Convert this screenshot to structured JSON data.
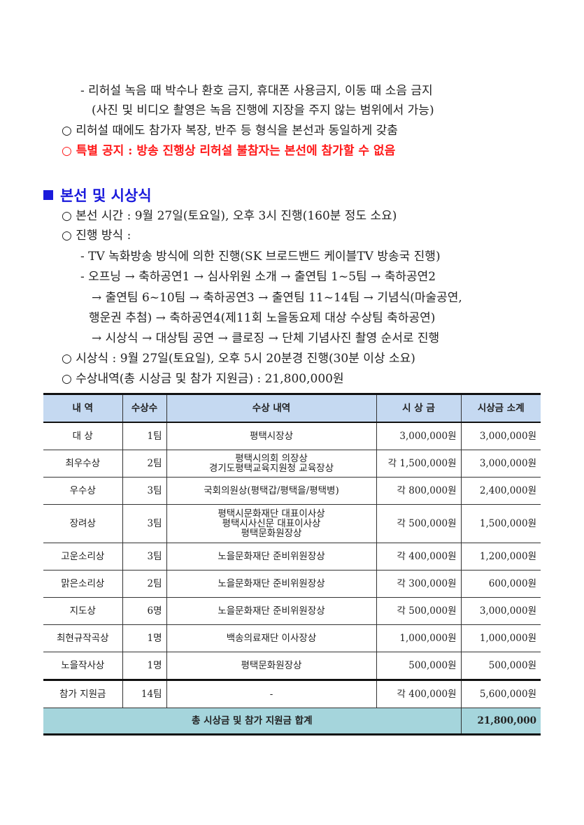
{
  "rehearsal": {
    "lines": [
      "- 리허설 녹음 때 박수나 환호 금지, 휴대폰 사용금지, 이동 때 소음 금지",
      "(사진 및 비디오 촬영은 녹음 진행에 지장을 주지 않는 범위에서 가능)",
      "○ 리허설 때에도 참가자 복장, 반주 등 형식을 본선과 동일하게 갖춤"
    ],
    "notice": "○ 특별 공지 : 방송 진행상 리허설 불참자는 본선에 참가할 수 없음",
    "notice_color": "#ff1a1a"
  },
  "section": {
    "heading": "본선 및 시상식",
    "heading_color": "#1a1adc",
    "lines": [
      "○ 본선 시간 : 9월 27일(토요일), 오후 3시 진행(160분 정도 소요)",
      "○ 진행 방식 :",
      "- TV 녹화방송 방식에 의한 진행(SK 브로드밴드 케이블TV 방송국 진행)",
      "- 오프닝 → 축하공연1 → 심사위원 소개 → 출연팀 1~5팀 → 축하공연2",
      "→ 출연팀 6~10팀 → 축하공연3 → 출연팀 11~14팀 → 기념식(마술공연,",
      "행운권 추첨) → 축하공연4(제11회 노을동요제 대상 수상팀 축하공연)",
      "→ 시상식 → 대상팀 공연 → 클로징 → 단체 기념사진 촬영 순서로 진행",
      "○ 시상식 : 9월 27일(토요일), 오후 5시 20분경 진행(30분 이상 소요)",
      "○ 수상내역(총 시상금 및 참가 지원금) : 21,800,000원"
    ]
  },
  "table": {
    "header_color": "#c5d9f1",
    "total_color": "#a5d5dc",
    "columns": [
      "내  역",
      "수상수",
      "수상 내역",
      "시 상 금",
      "시상금 소계"
    ],
    "rows": [
      {
        "name": "대  상",
        "count": "1팀",
        "detail": "평택시장상",
        "prize": "3,000,000원",
        "subtotal": "3,000,000원"
      },
      {
        "name": "최우수상",
        "count": "2팀",
        "detail": "평택시의회 의장상\n경기도평택교육지원청 교육장상",
        "prize": "각 1,500,000원",
        "subtotal": "3,000,000원"
      },
      {
        "name": "우수상",
        "count": "3팀",
        "detail": "국회의원상(평택갑/평택을/평택병)",
        "prize": "각 800,000원",
        "subtotal": "2,400,000원"
      },
      {
        "name": "장려상",
        "count": "3팀",
        "detail": "평택시문화재단 대표이사상\n평택시사신문 대표이사상\n평택문화원장상",
        "prize": "각 500,000원",
        "subtotal": "1,500,000원"
      },
      {
        "name": "고운소리상",
        "count": "3팀",
        "detail": "노을문화재단 준비위원장상",
        "prize": "각 400,000원",
        "subtotal": "1,200,000원"
      },
      {
        "name": "맑은소리상",
        "count": "2팀",
        "detail": "노을문화재단 준비위원장상",
        "prize": "각 300,000원",
        "subtotal": "600,000원"
      },
      {
        "name": "지도상",
        "count": "6명",
        "detail": "노을문화재단 준비위원장상",
        "prize": "각 500,000원",
        "subtotal": "3,000,000원"
      },
      {
        "name": "최현규작곡상",
        "count": "1명",
        "detail": "백송의료재단 이사장상",
        "prize": "1,000,000원",
        "subtotal": "1,000,000원"
      },
      {
        "name": "노을작사상",
        "count": "1명",
        "detail": "평택문화원장상",
        "prize": "500,000원",
        "subtotal": "500,000원"
      },
      {
        "name": "참가 지원금",
        "count": "14팀",
        "detail": "-",
        "prize": "각 400,000원",
        "subtotal": "5,600,000원"
      }
    ],
    "total_label": "총 시상금 및 참가 지원금 합계",
    "total_value": "21,800,000"
  }
}
